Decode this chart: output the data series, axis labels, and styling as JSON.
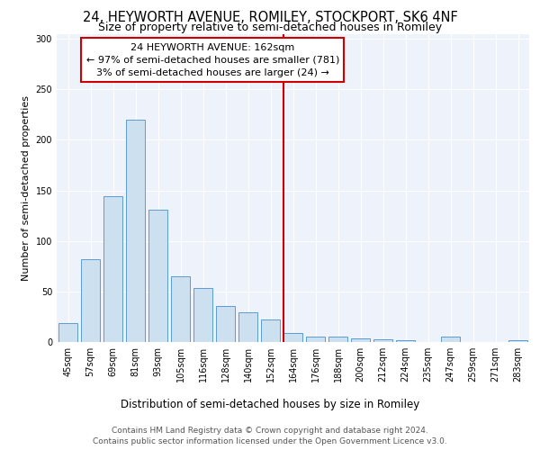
{
  "title": "24, HEYWORTH AVENUE, ROMILEY, STOCKPORT, SK6 4NF",
  "subtitle": "Size of property relative to semi-detached houses in Romiley",
  "xlabel": "Distribution of semi-detached houses by size in Romiley",
  "ylabel": "Number of semi-detached properties",
  "categories": [
    "45sqm",
    "57sqm",
    "69sqm",
    "81sqm",
    "93sqm",
    "105sqm",
    "116sqm",
    "128sqm",
    "140sqm",
    "152sqm",
    "164sqm",
    "176sqm",
    "188sqm",
    "200sqm",
    "212sqm",
    "224sqm",
    "235sqm",
    "247sqm",
    "259sqm",
    "271sqm",
    "283sqm"
  ],
  "values": [
    19,
    82,
    144,
    220,
    131,
    65,
    53,
    36,
    29,
    22,
    9,
    5,
    5,
    4,
    3,
    2,
    0,
    5,
    0,
    0,
    2
  ],
  "bar_color": "#cce0f0",
  "bar_edge_color": "#5b9bd5",
  "vline_index": 10,
  "annotation_text": "24 HEYWORTH AVENUE: 162sqm\n← 97% of semi-detached houses are smaller (781)\n3% of semi-detached houses are larger (24) →",
  "annotation_box_color": "#ffffff",
  "annotation_box_edge_color": "#cc0000",
  "vline_color": "#cc0000",
  "ylim": [
    0,
    305
  ],
  "yticks": [
    0,
    50,
    100,
    150,
    200,
    250,
    300
  ],
  "background_color": "#eef2fb",
  "footer": "Contains HM Land Registry data © Crown copyright and database right 2024.\nContains public sector information licensed under the Open Government Licence v3.0.",
  "title_fontsize": 10.5,
  "subtitle_fontsize": 9,
  "xlabel_fontsize": 8.5,
  "ylabel_fontsize": 8,
  "tick_fontsize": 7,
  "annotation_fontsize": 8,
  "footer_fontsize": 6.5
}
